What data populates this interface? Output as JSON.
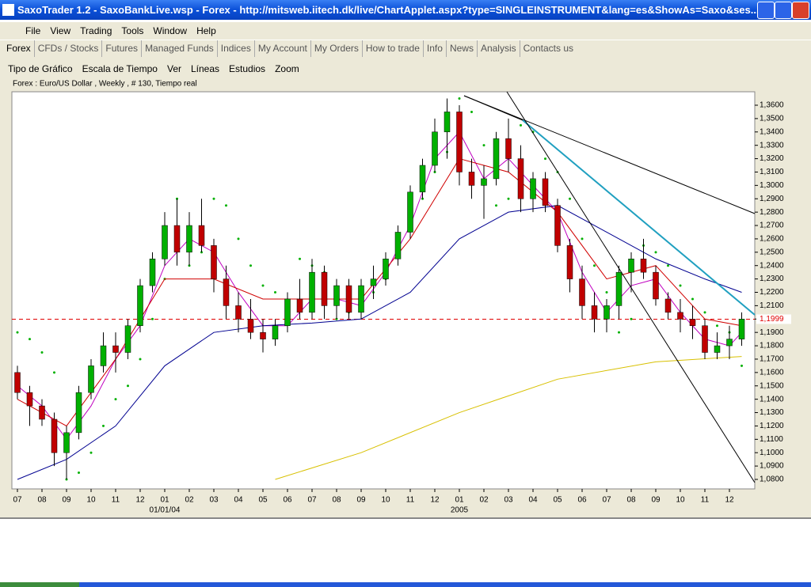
{
  "window": {
    "title": "SaxoTrader 1.2 - SaxoBankLive.wsp - Forex - http://mitsweb.iitech.dk/live/ChartApplet.aspx?type=SINGLEINSTRUMENT&lang=es&ShowAs=Saxo&ses..."
  },
  "menu": [
    "File",
    "View",
    "Trading",
    "Tools",
    "Window",
    "Help"
  ],
  "tabs": [
    "Forex",
    "CFDs / Stocks",
    "Futures",
    "Managed Funds",
    "Indices",
    "My Account",
    "My Orders",
    "How to trade",
    "Info",
    "News",
    "Analysis",
    "Contacts us"
  ],
  "chart_menu": [
    "Tipo de Gráfico",
    "Escala de Tiempo",
    "Ver",
    "Líneas",
    "Estudios",
    "Zoom"
  ],
  "chart_data": {
    "type": "candlestick",
    "title": "Forex : Euro/US Dollar , Weekly , # 130, Tiempo real",
    "categories": [
      "07",
      "08",
      "09",
      "10",
      "11",
      "12",
      "01",
      "02",
      "03",
      "04",
      "05",
      "06",
      "07",
      "08",
      "09",
      "10",
      "11",
      "12",
      "01",
      "02",
      "03",
      "04",
      "05",
      "06",
      "07",
      "08",
      "09",
      "10",
      "11",
      "12"
    ],
    "year_labels": [
      {
        "category": 6,
        "label": "01/01/04"
      },
      {
        "category": 18,
        "label": "2005"
      }
    ],
    "up_color": "#00b000",
    "down_color": "#c00000",
    "open": [
      1.16,
      1.145,
      1.135,
      1.125,
      1.1,
      1.115,
      1.145,
      1.165,
      1.18,
      1.175,
      1.195,
      1.225,
      1.245,
      1.27,
      1.25,
      1.27,
      1.255,
      1.23,
      1.21,
      1.2,
      1.19,
      1.185,
      1.195,
      1.215,
      1.205,
      1.235,
      1.21,
      1.225,
      1.205,
      1.225,
      1.23,
      1.245,
      1.265,
      1.295,
      1.315,
      1.34,
      1.355,
      1.31,
      1.3,
      1.305,
      1.335,
      1.32,
      1.29,
      1.305,
      1.285,
      1.255,
      1.23,
      1.21,
      1.2,
      1.21,
      1.235,
      1.245,
      1.235,
      1.215,
      1.205,
      1.2,
      1.195,
      1.175,
      1.18,
      1.185
    ],
    "high": [
      1.165,
      1.15,
      1.14,
      1.13,
      1.12,
      1.15,
      1.17,
      1.19,
      1.19,
      1.2,
      1.23,
      1.25,
      1.28,
      1.29,
      1.28,
      1.29,
      1.26,
      1.24,
      1.22,
      1.215,
      1.2,
      1.2,
      1.22,
      1.23,
      1.245,
      1.24,
      1.23,
      1.23,
      1.23,
      1.24,
      1.25,
      1.27,
      1.3,
      1.32,
      1.35,
      1.365,
      1.36,
      1.32,
      1.315,
      1.34,
      1.35,
      1.33,
      1.31,
      1.31,
      1.29,
      1.26,
      1.24,
      1.22,
      1.215,
      1.24,
      1.25,
      1.26,
      1.24,
      1.22,
      1.215,
      1.21,
      1.2,
      1.19,
      1.195,
      1.205
    ],
    "low": [
      1.14,
      1.12,
      1.12,
      1.09,
      1.08,
      1.11,
      1.14,
      1.16,
      1.16,
      1.17,
      1.19,
      1.22,
      1.24,
      1.24,
      1.24,
      1.25,
      1.22,
      1.2,
      1.19,
      1.185,
      1.175,
      1.18,
      1.19,
      1.2,
      1.2,
      1.2,
      1.2,
      1.2,
      1.2,
      1.215,
      1.225,
      1.24,
      1.26,
      1.29,
      1.31,
      1.32,
      1.3,
      1.29,
      1.275,
      1.3,
      1.31,
      1.28,
      1.28,
      1.28,
      1.25,
      1.22,
      1.2,
      1.19,
      1.19,
      1.2,
      1.22,
      1.23,
      1.21,
      1.2,
      1.19,
      1.185,
      1.17,
      1.17,
      1.17,
      1.18
    ],
    "close": [
      1.145,
      1.135,
      1.125,
      1.1,
      1.115,
      1.145,
      1.165,
      1.18,
      1.175,
      1.195,
      1.225,
      1.245,
      1.27,
      1.25,
      1.27,
      1.255,
      1.23,
      1.21,
      1.2,
      1.19,
      1.185,
      1.195,
      1.215,
      1.205,
      1.235,
      1.21,
      1.225,
      1.205,
      1.225,
      1.23,
      1.245,
      1.265,
      1.295,
      1.315,
      1.34,
      1.355,
      1.31,
      1.3,
      1.305,
      1.335,
      1.32,
      1.29,
      1.305,
      1.285,
      1.255,
      1.23,
      1.21,
      1.2,
      1.21,
      1.235,
      1.245,
      1.235,
      1.215,
      1.205,
      1.2,
      1.195,
      1.175,
      1.18,
      1.185,
      1.2
    ],
    "lines": [
      {
        "color": "#c000c0",
        "x": [
          0,
          2,
          4,
          6,
          8,
          10,
          12,
          14,
          16,
          18,
          20,
          22,
          24,
          26,
          28,
          30,
          32,
          34,
          36,
          38,
          40,
          42,
          44,
          46,
          48,
          50,
          52,
          54,
          56,
          58,
          59
        ],
        "values": [
          1.15,
          1.135,
          1.11,
          1.135,
          1.17,
          1.195,
          1.24,
          1.26,
          1.25,
          1.22,
          1.195,
          1.195,
          1.215,
          1.215,
          1.21,
          1.235,
          1.27,
          1.32,
          1.34,
          1.305,
          1.32,
          1.3,
          1.28,
          1.235,
          1.205,
          1.225,
          1.23,
          1.205,
          1.185,
          1.18,
          1.19
        ]
      },
      {
        "color": "#d00000",
        "x": [
          0,
          4,
          8,
          12,
          16,
          20,
          24,
          28,
          32,
          36,
          40,
          44,
          48,
          52,
          56,
          59
        ],
        "values": [
          1.14,
          1.12,
          1.17,
          1.23,
          1.23,
          1.215,
          1.215,
          1.215,
          1.26,
          1.32,
          1.31,
          1.28,
          1.23,
          1.24,
          1.2,
          1.195
        ]
      },
      {
        "color": "#000090",
        "x": [
          0,
          4,
          8,
          12,
          16,
          20,
          24,
          28,
          32,
          36,
          40,
          44,
          48,
          52,
          56,
          59
        ],
        "values": [
          1.08,
          1.095,
          1.12,
          1.165,
          1.19,
          1.195,
          1.197,
          1.2,
          1.22,
          1.26,
          1.28,
          1.285,
          1.265,
          1.245,
          1.23,
          1.22
        ]
      },
      {
        "color": "#d8c000",
        "x": [
          21,
          28,
          36,
          44,
          52,
          59
        ],
        "values": [
          1.08,
          1.1,
          1.13,
          1.155,
          1.168,
          1.172
        ]
      }
    ],
    "sar": {
      "color": "#00b000",
      "values": [
        1.19,
        1.185,
        1.175,
        1.16,
        1.08,
        1.085,
        1.1,
        1.12,
        1.14,
        1.15,
        1.17,
        1.2,
        1.23,
        1.29,
        1.24,
        1.25,
        1.29,
        1.285,
        1.26,
        1.24,
        1.225,
        1.22,
        1.2,
        1.245,
        1.24,
        1.235,
        1.2,
        1.205,
        1.21,
        1.22,
        1.23,
        1.25,
        1.27,
        1.29,
        1.31,
        1.325,
        1.365,
        1.355,
        1.33,
        1.285,
        1.29,
        1.345,
        1.34,
        1.32,
        1.31,
        1.29,
        1.26,
        1.24,
        1.22,
        1.19,
        1.2,
        1.255,
        1.25,
        1.24,
        1.225,
        1.215,
        1.205,
        1.195,
        1.19,
        1.165
      ]
    },
    "price_line": {
      "value": 1.1999,
      "label": "1,1999",
      "color": "#e00000"
    },
    "ylim": [
      1.08,
      1.36
    ],
    "yticks": [
      {
        "value": 1.08,
        "label": "1,0800"
      },
      {
        "value": 1.09,
        "label": "1,0900"
      },
      {
        "value": 1.1,
        "label": "1,1000"
      },
      {
        "value": 1.11,
        "label": "1,1100"
      },
      {
        "value": 1.12,
        "label": "1,1200"
      },
      {
        "value": 1.13,
        "label": "1,1300"
      },
      {
        "value": 1.14,
        "label": "1,1400"
      },
      {
        "value": 1.15,
        "label": "1,1500"
      },
      {
        "value": 1.16,
        "label": "1,1600"
      },
      {
        "value": 1.17,
        "label": "1,1700"
      },
      {
        "value": 1.18,
        "label": "1,1800"
      },
      {
        "value": 1.19,
        "label": "1,1900"
      },
      {
        "value": 1.2,
        "label": "1,2000"
      },
      {
        "value": 1.21,
        "label": "1,2100"
      },
      {
        "value": 1.22,
        "label": "1,2200"
      },
      {
        "value": 1.23,
        "label": "1,2300"
      },
      {
        "value": 1.24,
        "label": "1,2400"
      },
      {
        "value": 1.25,
        "label": "1,2500"
      },
      {
        "value": 1.26,
        "label": "1,2600"
      },
      {
        "value": 1.27,
        "label": "1,2700"
      },
      {
        "value": 1.28,
        "label": "1,2800"
      },
      {
        "value": 1.29,
        "label": "1,2900"
      },
      {
        "value": 1.3,
        "label": "1,3000"
      },
      {
        "value": 1.31,
        "label": "1,3100"
      },
      {
        "value": 1.32,
        "label": "1,3200"
      },
      {
        "value": 1.33,
        "label": "1,3300"
      },
      {
        "value": 1.34,
        "label": "1,3400"
      },
      {
        "value": 1.35,
        "label": "1,3500"
      },
      {
        "value": 1.36,
        "label": "1,3600"
      }
    ]
  }
}
